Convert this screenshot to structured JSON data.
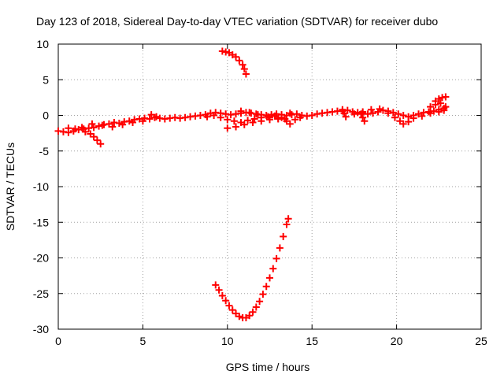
{
  "chart_data": {
    "type": "scatter",
    "title": "Day 123 of 2018, Sidereal Day-to-day VTEC variation (SDTVAR) for receiver dubo",
    "xlabel": "GPS time / hours",
    "ylabel": "SDTVAR / TECUs",
    "xlim": [
      0,
      25
    ],
    "ylim": [
      -30,
      10
    ],
    "xticks": [
      0,
      5,
      10,
      15,
      20,
      25
    ],
    "yticks": [
      10,
      5,
      0,
      -5,
      -10,
      -15,
      -20,
      -25,
      -30
    ],
    "grid": true,
    "marker": "plus",
    "color": "#ff0000",
    "series": [
      {
        "values": [
          [
            0.0,
            -2.2
          ],
          [
            0.3,
            -2.3
          ],
          [
            0.6,
            -2.4
          ],
          [
            0.9,
            -2.2
          ],
          [
            1.2,
            -2.0
          ],
          [
            1.5,
            -1.9
          ],
          [
            1.8,
            -1.8
          ],
          [
            2.1,
            -1.7
          ],
          [
            2.4,
            -1.5
          ],
          [
            2.7,
            -1.3
          ],
          [
            3.0,
            -1.2
          ],
          [
            3.3,
            -1.0
          ],
          [
            3.6,
            -1.1
          ],
          [
            3.9,
            -0.9
          ],
          [
            4.2,
            -0.8
          ],
          [
            4.5,
            -0.6
          ],
          [
            4.8,
            -0.5
          ],
          [
            5.1,
            -0.4
          ],
          [
            5.4,
            -0.5
          ],
          [
            5.7,
            -0.3
          ],
          [
            6.0,
            -0.4
          ],
          [
            6.3,
            -0.5
          ],
          [
            6.6,
            -0.4
          ],
          [
            6.9,
            -0.3
          ],
          [
            7.2,
            -0.4
          ],
          [
            7.5,
            -0.3
          ],
          [
            7.8,
            -0.2
          ],
          [
            8.1,
            -0.1
          ],
          [
            8.4,
            0.0
          ],
          [
            8.7,
            0.1
          ],
          [
            9.0,
            0.3
          ],
          [
            9.3,
            0.4
          ],
          [
            9.6,
            0.3
          ],
          [
            9.9,
            0.2
          ],
          [
            10.2,
            0.1
          ],
          [
            10.5,
            0.2
          ],
          [
            10.8,
            0.3
          ],
          [
            11.1,
            0.4
          ],
          [
            11.4,
            0.3
          ],
          [
            11.7,
            0.2
          ],
          [
            12.0,
            0.1
          ],
          [
            12.3,
            0.0
          ],
          [
            12.6,
            0.1
          ],
          [
            12.9,
            0.2
          ],
          [
            13.2,
            0.1
          ],
          [
            13.5,
            0.0
          ],
          [
            13.8,
            0.1
          ],
          [
            14.1,
            0.2
          ],
          [
            14.4,
            0.0
          ],
          [
            14.7,
            -0.1
          ],
          [
            15.0,
            0.0
          ],
          [
            15.3,
            0.2
          ],
          [
            15.6,
            0.3
          ],
          [
            15.9,
            0.4
          ],
          [
            16.2,
            0.5
          ],
          [
            16.5,
            0.6
          ],
          [
            16.8,
            0.6
          ],
          [
            17.1,
            0.7
          ],
          [
            17.4,
            0.5
          ],
          [
            17.7,
            0.4
          ],
          [
            18.0,
            0.3
          ],
          [
            18.3,
            0.2
          ],
          [
            18.6,
            0.3
          ],
          [
            18.9,
            0.5
          ],
          [
            19.2,
            0.7
          ],
          [
            19.5,
            0.6
          ],
          [
            19.8,
            0.4
          ],
          [
            20.1,
            0.2
          ],
          [
            20.4,
            0.0
          ],
          [
            20.7,
            -0.2
          ],
          [
            21.0,
            0.0
          ],
          [
            21.3,
            0.2
          ],
          [
            21.6,
            0.4
          ],
          [
            21.9,
            0.5
          ],
          [
            22.2,
            0.6
          ],
          [
            22.5,
            0.8
          ],
          [
            22.8,
            1.0
          ],
          [
            0.6,
            -1.8
          ],
          [
            1.0,
            -1.9
          ],
          [
            1.4,
            -1.7
          ],
          [
            2.0,
            -1.2
          ],
          [
            2.6,
            -1.4
          ],
          [
            3.2,
            -1.6
          ],
          [
            3.8,
            -1.3
          ],
          [
            4.4,
            -1.0
          ],
          [
            5.0,
            -0.8
          ],
          [
            5.5,
            0.1
          ],
          [
            5.8,
            -0.2
          ],
          [
            1.6,
            -2.3
          ],
          [
            1.9,
            -2.6
          ],
          [
            2.1,
            -3.0
          ],
          [
            2.3,
            -3.5
          ],
          [
            2.5,
            -4.0
          ],
          [
            8.8,
            -0.2
          ],
          [
            9.2,
            0.0
          ],
          [
            9.6,
            -0.3
          ],
          [
            10.0,
            -0.6
          ],
          [
            10.4,
            -0.8
          ],
          [
            10.8,
            -1.0
          ],
          [
            11.2,
            -0.7
          ],
          [
            11.6,
            -0.5
          ],
          [
            12.0,
            -0.3
          ],
          [
            12.4,
            -0.2
          ],
          [
            12.8,
            -0.1
          ],
          [
            13.2,
            -0.3
          ],
          [
            13.5,
            -0.8
          ],
          [
            13.7,
            -1.2
          ],
          [
            10.0,
            -1.8
          ],
          [
            10.5,
            -1.6
          ],
          [
            11.0,
            -1.3
          ],
          [
            11.5,
            -1.0
          ],
          [
            12.0,
            -0.8
          ],
          [
            12.5,
            -0.6
          ],
          [
            13.0,
            -0.5
          ],
          [
            10.8,
            0.6
          ],
          [
            11.3,
            0.4
          ],
          [
            11.8,
            0.1
          ],
          [
            12.5,
            -0.3
          ],
          [
            13.0,
            -0.4
          ],
          [
            13.4,
            -0.5
          ],
          [
            13.7,
            0.3
          ],
          [
            14.0,
            -0.6
          ],
          [
            14.3,
            -0.3
          ],
          [
            16.8,
            0.8
          ],
          [
            16.9,
            0.3
          ],
          [
            17.0,
            -0.2
          ],
          [
            17.5,
            0.2
          ],
          [
            18.0,
            0.5
          ],
          [
            18.5,
            0.8
          ],
          [
            19.0,
            0.9
          ],
          [
            19.5,
            0.3
          ],
          [
            19.9,
            -0.3
          ],
          [
            20.2,
            -0.8
          ],
          [
            20.4,
            -1.2
          ],
          [
            20.7,
            -0.9
          ],
          [
            21.0,
            -0.4
          ],
          [
            21.5,
            -0.1
          ],
          [
            22.0,
            0.3
          ],
          [
            22.5,
            0.5
          ],
          [
            22.8,
            0.7
          ],
          [
            22.0,
            1.2
          ],
          [
            22.3,
            1.5
          ],
          [
            22.6,
            1.7
          ],
          [
            22.9,
            1.2
          ],
          [
            22.3,
            2.0
          ],
          [
            22.5,
            2.3
          ],
          [
            22.7,
            2.5
          ],
          [
            22.9,
            2.6
          ],
          [
            17.9,
            0.2
          ],
          [
            18.0,
            -0.3
          ],
          [
            18.1,
            -0.8
          ],
          [
            9.7,
            9.0
          ],
          [
            9.9,
            8.9
          ],
          [
            10.1,
            8.8
          ],
          [
            10.3,
            8.5
          ],
          [
            10.5,
            8.2
          ],
          [
            10.7,
            7.7
          ],
          [
            10.9,
            7.1
          ],
          [
            11.0,
            6.5
          ],
          [
            11.1,
            5.8
          ],
          [
            9.3,
            -23.8
          ],
          [
            9.5,
            -24.5
          ],
          [
            9.7,
            -25.3
          ],
          [
            9.9,
            -26.0
          ],
          [
            10.1,
            -26.7
          ],
          [
            10.3,
            -27.3
          ],
          [
            10.5,
            -27.8
          ],
          [
            10.7,
            -28.2
          ],
          [
            10.9,
            -28.4
          ],
          [
            11.1,
            -28.4
          ],
          [
            11.3,
            -28.1
          ],
          [
            11.5,
            -27.6
          ],
          [
            11.7,
            -26.9
          ],
          [
            11.9,
            -26.1
          ],
          [
            12.1,
            -25.1
          ],
          [
            12.3,
            -24.0
          ],
          [
            12.5,
            -22.8
          ],
          [
            12.7,
            -21.5
          ],
          [
            12.9,
            -20.1
          ],
          [
            13.1,
            -18.6
          ],
          [
            13.3,
            -17.0
          ],
          [
            13.5,
            -15.3
          ],
          [
            13.6,
            -14.5
          ]
        ]
      }
    ]
  }
}
